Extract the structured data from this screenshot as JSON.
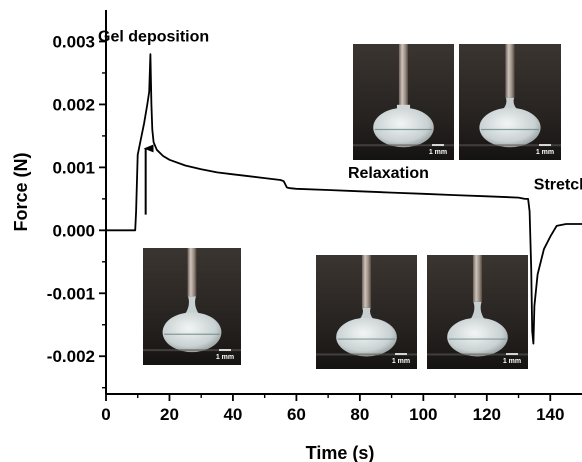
{
  "chart_data": {
    "type": "line",
    "xlabel": "Time (s)",
    "ylabel": "Force (N)",
    "xlim": [
      0,
      150
    ],
    "ylim": [
      -0.0026,
      0.0035
    ],
    "x_ticks": [
      0,
      20,
      40,
      60,
      80,
      100,
      120,
      140
    ],
    "x_tick_labels": [
      "0",
      "20",
      "40",
      "60",
      "80",
      "100",
      "120",
      "140"
    ],
    "y_ticks": [
      0.003,
      0.002,
      0.001,
      0.0,
      -0.001,
      -0.002
    ],
    "y_tick_labels": [
      "0.003",
      "0.002",
      "0.001",
      "0.000",
      "-0.001",
      "-0.002"
    ],
    "series": [
      {
        "color": "#000000",
        "x": [
          0,
          9.2,
          9.5,
          10,
          11,
          12,
          13,
          13.6,
          14,
          14.3,
          14.6,
          15,
          16,
          18,
          20,
          25,
          30,
          35,
          40,
          45,
          50,
          55,
          56,
          57,
          58,
          60,
          70,
          80,
          90,
          100,
          110,
          120,
          130,
          132,
          133,
          133.5,
          134,
          134.3,
          134.7,
          135,
          136,
          138,
          140,
          142,
          145,
          150
        ],
        "y": [
          0,
          0,
          0.0003,
          0.0012,
          0.00145,
          0.0017,
          0.002,
          0.0022,
          0.0028,
          0.002,
          0.0016,
          0.0014,
          0.00128,
          0.00118,
          0.00112,
          0.00103,
          0.00097,
          0.00092,
          0.00089,
          0.00086,
          0.00083,
          0.0008,
          0.00078,
          0.00068,
          0.00067,
          0.00066,
          0.00064,
          0.00062,
          0.0006,
          0.00058,
          0.00056,
          0.00054,
          0.00052,
          0.0005,
          0.0005,
          0.0003,
          -0.0006,
          -0.0016,
          -0.0018,
          -0.0012,
          -0.0007,
          -0.0003,
          -0.0001,
          7e-05,
          0.0001,
          0.0001
        ]
      }
    ],
    "annotations": [
      {
        "text": "Gel deposition",
        "x": 15,
        "y": 0.003
      },
      {
        "text": "Relaxation",
        "x": 89,
        "y": 0.00083
      },
      {
        "text": "Stretch",
        "x": 143.5,
        "y": 0.00065
      }
    ],
    "arrow": {
      "x": 12.5,
      "y_from": 0.00025,
      "y_to": 0.0013
    },
    "photo_insets": [
      {
        "scale_label": "1 mm",
        "stage": "contact"
      },
      {
        "scale_label": "1 mm",
        "stage": "early stretch"
      },
      {
        "scale_label": "1 mm",
        "stage": "late stretch"
      },
      {
        "scale_label": "1 mm",
        "stage": "early stretch"
      },
      {
        "scale_label": "1 mm",
        "stage": "late stretch"
      }
    ]
  }
}
